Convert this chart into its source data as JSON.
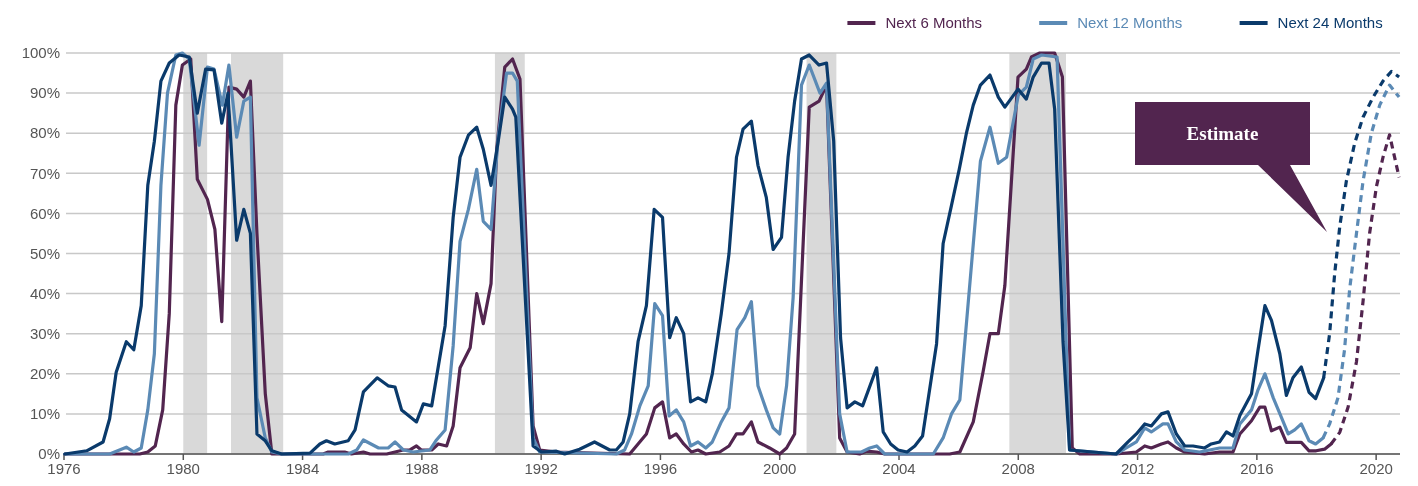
{
  "chart_data": {
    "type": "line",
    "xlim": [
      1976,
      2020.8
    ],
    "xticks": [
      1976,
      1980,
      1984,
      1988,
      1992,
      1996,
      2000,
      2004,
      2008,
      2012,
      2016,
      2020
    ],
    "ylim": [
      0,
      100
    ],
    "yticks": [
      {
        "value": 0,
        "label": "0%"
      },
      {
        "value": 10,
        "label": "10%"
      },
      {
        "value": 20,
        "label": "20%"
      },
      {
        "value": 30,
        "label": "30%"
      },
      {
        "value": 40,
        "label": "40%"
      },
      {
        "value": 50,
        "label": "50%"
      },
      {
        "value": 60,
        "label": "60%"
      },
      {
        "value": 70,
        "label": "70%"
      },
      {
        "value": 80,
        "label": "80%"
      },
      {
        "value": 90,
        "label": "90%"
      },
      {
        "value": 100,
        "label": "100%"
      }
    ],
    "grid": "y",
    "legend": "top right",
    "bands": [
      {
        "axis": "x",
        "from": 1980.0,
        "to": 1980.8,
        "color": "#d9d9d9"
      },
      {
        "axis": "x",
        "from": 1981.6,
        "to": 1983.35,
        "color": "#d9d9d9"
      },
      {
        "axis": "x",
        "from": 1990.45,
        "to": 1991.45,
        "color": "#d9d9d9"
      },
      {
        "axis": "x",
        "from": 2000.9,
        "to": 2001.9,
        "color": "#d9d9d9"
      },
      {
        "axis": "x",
        "from": 2007.7,
        "to": 2009.6,
        "color": "#d9d9d9"
      }
    ],
    "annotations": [
      "Estimate"
    ],
    "series": [
      {
        "name": "Next 6 Months",
        "color": "#52254f",
        "line_style": "solid",
        "x": [
          1976.03,
          1978.54,
          1978.81,
          1979.06,
          1979.31,
          1979.53,
          1979.75,
          1979.97,
          1980.25,
          1980.47,
          1980.81,
          1981.06,
          1981.29,
          1981.53,
          1981.79,
          1982.03,
          1982.25,
          1982.47,
          1982.75,
          1982.97,
          1983.3,
          1984.69,
          1984.86,
          1985.41,
          1985.64,
          1986.04,
          1986.26,
          1986.82,
          1987.38,
          1987.6,
          1987.82,
          1987.98,
          1988.33,
          1988.55,
          1988.83,
          1989.05,
          1989.28,
          1989.62,
          1989.84,
          1990.06,
          1990.32,
          1990.51,
          1990.78,
          1991.04,
          1991.29,
          1991.73,
          1991.95,
          1992.51,
          1994.97,
          1995.25,
          1995.53,
          1995.81,
          1996.07,
          1996.31,
          1996.53,
          1996.78,
          1997.04,
          1997.26,
          1997.52,
          1997.99,
          1998.3,
          1998.55,
          1998.77,
          1999.05,
          1999.27,
          1999.66,
          2000.0,
          2000.23,
          2000.5,
          2000.99,
          2001.32,
          2001.57,
          2002.01,
          2002.26,
          2002.68,
          2002.9,
          2003.25,
          2003.52,
          2005.7,
          2006.04,
          2006.49,
          2006.82,
          2007.05,
          2007.33,
          2007.55,
          2007.99,
          2008.27,
          2008.44,
          2008.72,
          2009.22,
          2009.48,
          2009.81,
          2010.06,
          2011.28,
          2011.96,
          2012.24,
          2012.46,
          2012.8,
          2013.02,
          2013.3,
          2013.58,
          2014.25,
          2014.75,
          2015.2,
          2015.43,
          2015.82,
          2016.1,
          2016.27,
          2016.49,
          2016.77,
          2016.99,
          2017.49,
          2017.75,
          2017.99,
          2018.27,
          2018.49
        ],
        "values": [
          0,
          0,
          0.5,
          2,
          11,
          35,
          87,
          97,
          98.5,
          68.5,
          63.5,
          56,
          33,
          91.5,
          91,
          89,
          93,
          55,
          15,
          0,
          0,
          0,
          0.5,
          0.5,
          0,
          0.5,
          0,
          0,
          1,
          1,
          2,
          1,
          1,
          2.5,
          2,
          7,
          21.5,
          26.5,
          40,
          32.5,
          42.5,
          76,
          96.5,
          98.5,
          93.5,
          7,
          1,
          0.5,
          0,
          2.5,
          5,
          11.5,
          13,
          4,
          5,
          2.5,
          0.5,
          1,
          0,
          0.5,
          2,
          5,
          5,
          8,
          3,
          1.5,
          0,
          1.5,
          5,
          86.5,
          88,
          92,
          4,
          0.5,
          0,
          0.7,
          0.5,
          0,
          0,
          0.5,
          8,
          20.5,
          30,
          30,
          42,
          94,
          96,
          99,
          100,
          100,
          94,
          1.5,
          0,
          0,
          0.5,
          2,
          1.5,
          2.5,
          3,
          1.5,
          0.5,
          0,
          0.5,
          0.5,
          5,
          8.3,
          11.7,
          11.7,
          5.8,
          6.7,
          2.9,
          2.9,
          0.8,
          0.8,
          1.2,
          2.5
        ]
      },
      {
        "color": "#52254f",
        "line_style": "dashed",
        "x": [
          2018.49,
          2018.78,
          2019.06,
          2019.34,
          2019.56,
          2019.78,
          2020.01,
          2020.23,
          2020.45,
          2020.77
        ],
        "values": [
          2.5,
          5.4,
          11.7,
          23,
          38,
          55,
          66.7,
          74,
          79.6,
          69
        ]
      },
      {
        "name": "Next 12 Months",
        "color": "#5b8ab5",
        "line_style": "solid",
        "x": [
          1976.03,
          1977.53,
          1978.09,
          1978.34,
          1978.59,
          1978.81,
          1979.03,
          1979.25,
          1979.47,
          1979.75,
          1979.97,
          1980.2,
          1980.53,
          1980.81,
          1981.03,
          1981.31,
          1981.53,
          1981.79,
          1982.03,
          1982.25,
          1982.47,
          1982.75,
          1982.97,
          1983.3,
          1985.53,
          1985.82,
          1986.04,
          1986.55,
          1986.87,
          1987.1,
          1987.38,
          1987.71,
          1988.27,
          1988.49,
          1988.78,
          1989.05,
          1989.28,
          1989.56,
          1989.84,
          1990.06,
          1990.32,
          1990.56,
          1990.84,
          1991.04,
          1991.2,
          1991.73,
          1991.95,
          1994.52,
          1994.8,
          1995.03,
          1995.31,
          1995.59,
          1995.81,
          1996.07,
          1996.29,
          1996.53,
          1996.78,
          1997.01,
          1997.26,
          1997.52,
          1997.74,
          1998.04,
          1998.3,
          1998.57,
          1998.83,
          1999.05,
          1999.27,
          1999.55,
          1999.78,
          2000.0,
          2000.23,
          2000.45,
          2000.73,
          2000.99,
          2001.35,
          2001.57,
          2002.01,
          2002.26,
          2002.74,
          2003.02,
          2003.25,
          2003.52,
          2005.15,
          2005.48,
          2005.76,
          2006.04,
          2006.73,
          2007.05,
          2007.33,
          2007.61,
          2008.0,
          2008.27,
          2008.5,
          2008.78,
          2009.3,
          2009.72,
          2011.28,
          2011.62,
          2011.96,
          2012.24,
          2012.46,
          2012.85,
          2013.02,
          2013.3,
          2013.58,
          2014.08,
          2014.75,
          2015.2,
          2015.43,
          2015.82,
          2016.04,
          2016.27,
          2016.55,
          2016.83,
          2017.05,
          2017.27,
          2017.49,
          2017.75,
          2017.97,
          2018.22
        ],
        "values": [
          0,
          0,
          1.7,
          0.5,
          1.5,
          11,
          25,
          67,
          90,
          99.5,
          100,
          98.5,
          77,
          96.5,
          96,
          87,
          97,
          79,
          88,
          89,
          14,
          4,
          0.5,
          0,
          0,
          1,
          3.5,
          1.5,
          1.5,
          3,
          1,
          0.5,
          1,
          3.5,
          6,
          27,
          53,
          61,
          71,
          58,
          56,
          79,
          95,
          95,
          93,
          4,
          0.5,
          0,
          1,
          5,
          12,
          17,
          37.5,
          34.5,
          9.5,
          11,
          8,
          2,
          3,
          1.5,
          3,
          8,
          11.5,
          31,
          34,
          38,
          17,
          11,
          6.5,
          5,
          17,
          39,
          92,
          97,
          90,
          92.5,
          10,
          0.5,
          0.5,
          1.5,
          2,
          0,
          0,
          4,
          10,
          13.5,
          73,
          81.5,
          72.5,
          74,
          89.5,
          91.5,
          98.5,
          99.5,
          99,
          1,
          0,
          1.5,
          3,
          6.5,
          5.5,
          7.5,
          7.5,
          3,
          1,
          0.5,
          1.5,
          1.5,
          7.5,
          11,
          16,
          20,
          14,
          9,
          5,
          6,
          7.5,
          3.3,
          2.5,
          4
        ]
      },
      {
        "color": "#5b8ab5",
        "line_style": "dashed",
        "x": [
          2018.22,
          2018.44,
          2018.72,
          2018.94,
          2019.11,
          2019.34,
          2019.56,
          2019.84,
          2020.12,
          2020.45,
          2020.77
        ],
        "values": [
          4,
          7.5,
          14,
          26,
          41,
          55,
          68,
          80,
          87,
          92,
          89
        ]
      },
      {
        "name": "Next 24 Months",
        "color": "#0a3a6b",
        "line_style": "solid",
        "x": [
          1976.03,
          1976.76,
          1977.31,
          1977.53,
          1977.75,
          1978.09,
          1978.34,
          1978.59,
          1978.81,
          1979.03,
          1979.25,
          1979.53,
          1979.86,
          1980.2,
          1980.47,
          1980.75,
          1981.03,
          1981.29,
          1981.5,
          1981.79,
          1982.03,
          1982.25,
          1982.47,
          1982.75,
          1982.97,
          1983.3,
          1984.25,
          1984.58,
          1984.8,
          1985.08,
          1985.53,
          1985.76,
          1986.04,
          1986.5,
          1986.87,
          1987.1,
          1987.32,
          1987.82,
          1988.05,
          1988.33,
          1988.78,
          1989.05,
          1989.28,
          1989.56,
          1989.84,
          1990.06,
          1990.32,
          1990.56,
          1990.78,
          1991.04,
          1991.15,
          1991.73,
          1992.01,
          1992.51,
          1992.79,
          1993.29,
          1993.79,
          1994.3,
          1994.52,
          1994.75,
          1994.97,
          1995.25,
          1995.53,
          1995.79,
          1996.07,
          1996.31,
          1996.53,
          1996.78,
          1997.01,
          1997.26,
          1997.52,
          1997.74,
          1998.04,
          1998.3,
          1998.55,
          1998.77,
          1999.05,
          1999.27,
          1999.55,
          1999.78,
          2000.06,
          2000.28,
          2000.5,
          2000.73,
          2000.99,
          2001.32,
          2001.57,
          2001.81,
          2002.04,
          2002.26,
          2002.52,
          2002.78,
          2003.25,
          2003.47,
          2003.72,
          2003.97,
          2004.27,
          2004.53,
          2004.79,
          2005.26,
          2005.48,
          2005.76,
          2006.02,
          2006.26,
          2006.49,
          2006.73,
          2007.05,
          2007.33,
          2007.55,
          2007.99,
          2008.27,
          2008.5,
          2008.78,
          2009.03,
          2009.22,
          2009.5,
          2009.72,
          2011.28,
          2011.68,
          2011.96,
          2012.24,
          2012.46,
          2012.8,
          2013.02,
          2013.3,
          2013.58,
          2013.86,
          2014.25,
          2014.47,
          2014.75,
          2014.98,
          2015.2,
          2015.43,
          2015.82,
          2016.04,
          2016.27,
          2016.49,
          2016.77,
          2016.99,
          2017.21,
          2017.49,
          2017.75,
          2017.97,
          2018.24
        ],
        "values": [
          0,
          0.8,
          3,
          8.8,
          20.4,
          28,
          26,
          37,
          67,
          78,
          93,
          97.5,
          99.5,
          99,
          85,
          96,
          95.8,
          82.5,
          90,
          53.3,
          61,
          55,
          5,
          3.3,
          0.8,
          0,
          0.2,
          2.5,
          3.3,
          2.5,
          3.3,
          6,
          15.5,
          19,
          17,
          16.7,
          11,
          8,
          12.5,
          12,
          32,
          59,
          74,
          79.5,
          81.5,
          76,
          67,
          78,
          89,
          86,
          84,
          2,
          0.5,
          0.7,
          0,
          1.2,
          3,
          1,
          1,
          3,
          10,
          28,
          37,
          61,
          59,
          29,
          34,
          30,
          13,
          14,
          13,
          20,
          35,
          50,
          74,
          81,
          83,
          72,
          64,
          51,
          54,
          74,
          88,
          98.5,
          99.5,
          97,
          97.5,
          78,
          29,
          11.5,
          13,
          12,
          21.5,
          5.5,
          2.5,
          1,
          0.5,
          2,
          4.5,
          27.5,
          52.5,
          62,
          71,
          80,
          87,
          92,
          94.5,
          89,
          86.5,
          91,
          88.5,
          94,
          97.5,
          97.5,
          86,
          28,
          1,
          0,
          3,
          5,
          7.5,
          7,
          10,
          10.5,
          5,
          2,
          2,
          1.5,
          2.5,
          3,
          5.5,
          4.5,
          9.6,
          15,
          26,
          37,
          33.3,
          25,
          14.6,
          19,
          21.7,
          15.4,
          13.8,
          19
        ]
      },
      {
        "color": "#0a3a6b",
        "line_style": "dashed",
        "x": [
          2018.24,
          2018.44,
          2018.61,
          2018.78,
          2019.0,
          2019.28,
          2019.56,
          2019.9,
          2020.23,
          2020.51,
          2020.77
        ],
        "values": [
          19,
          30,
          45,
          56.7,
          68,
          77.5,
          84,
          89,
          93,
          95.4,
          94
        ]
      }
    ]
  }
}
